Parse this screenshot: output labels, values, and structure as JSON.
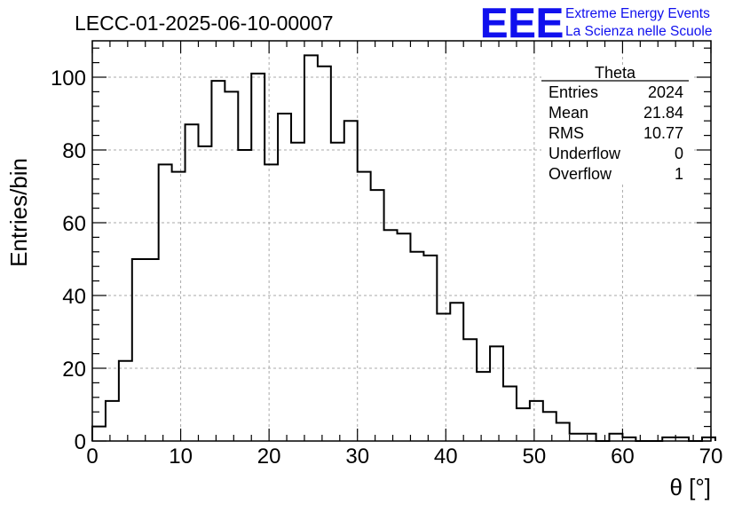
{
  "header": {
    "run_title": "LECC-01-2025-06-10-00007",
    "logo_letters": "EEE",
    "logo_line1": "Extreme Energy Events",
    "logo_line2": "La Scienza nelle Scuole",
    "logo_color": "#1010ee"
  },
  "stats_box": {
    "title": "Theta",
    "rows": [
      {
        "label": "Entries",
        "value": "2024"
      },
      {
        "label": "Mean",
        "value": "21.84"
      },
      {
        "label": "RMS",
        "value": "10.77"
      },
      {
        "label": "Underflow",
        "value": "0"
      },
      {
        "label": "Overflow",
        "value": "1"
      }
    ]
  },
  "chart_data": {
    "type": "bar",
    "histogram": true,
    "xlabel": "θ [°]",
    "ylabel": "Entries/bin",
    "xlim": [
      0,
      70
    ],
    "ylim": [
      0,
      110
    ],
    "grid": true,
    "legend": "top-right",
    "x_ticks": [
      0,
      10,
      20,
      30,
      40,
      50,
      60,
      70
    ],
    "y_ticks": [
      0,
      20,
      40,
      60,
      80,
      100
    ],
    "bin_edges_start": 0,
    "bin_width": 1.5,
    "values": [
      4,
      11,
      22,
      50,
      50,
      76,
      74,
      87,
      81,
      99,
      96,
      80,
      101,
      76,
      90,
      82,
      106,
      103,
      82,
      88,
      74,
      69,
      58,
      57,
      52,
      51,
      35,
      38,
      28,
      19,
      26,
      15,
      9,
      11,
      8,
      5,
      2,
      2,
      0,
      2,
      1,
      0,
      0,
      1,
      1,
      0,
      1
    ]
  }
}
